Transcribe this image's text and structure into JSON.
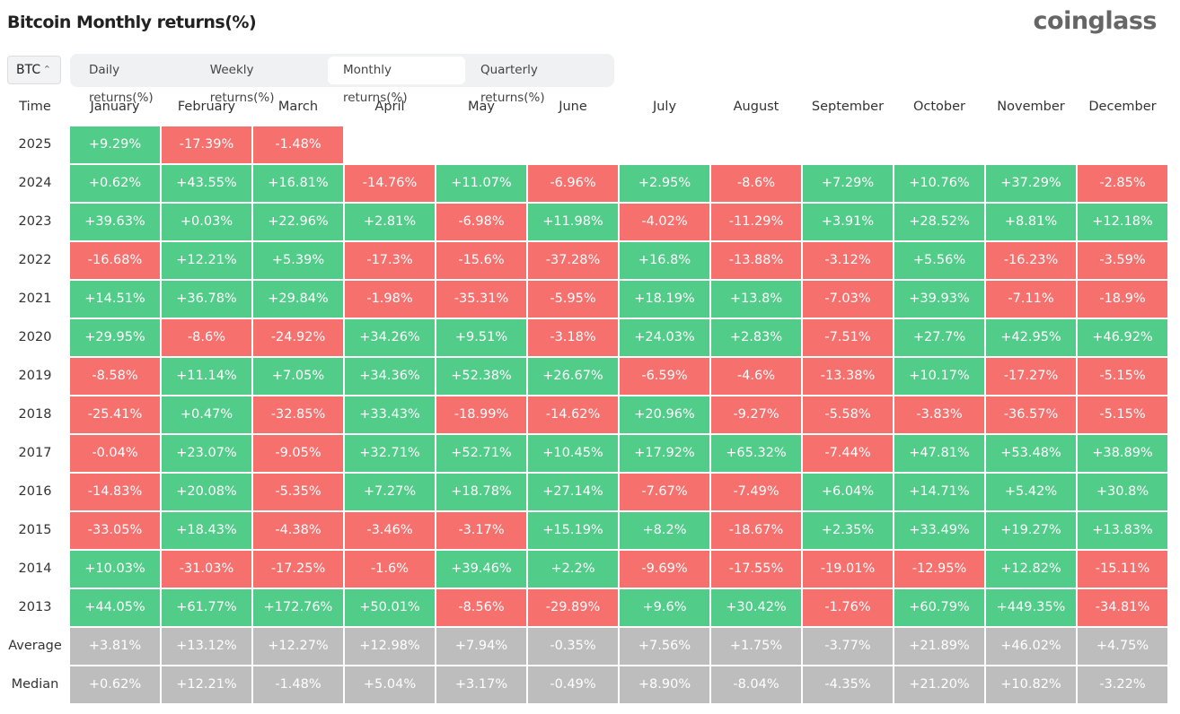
{
  "header": {
    "title": "Bitcoin Monthly returns(%)",
    "brand": "coinglass"
  },
  "selector": "BTC",
  "tabs": [
    "Daily returns(%)",
    "Weekly returns(%)",
    "Monthly returns(%)",
    "Quarterly returns(%)"
  ],
  "table": {
    "columns": [
      "Time",
      "January",
      "February",
      "March",
      "April",
      "May",
      "June",
      "July",
      "August",
      "September",
      "October",
      "November",
      "December"
    ],
    "rows": [
      [
        "2025",
        "+9.29%",
        "-17.39%",
        "-1.48%"
      ],
      [
        "2024",
        "+0.62%",
        "+43.55%",
        "+16.81%",
        "-14.76%",
        "+11.07%",
        "-6.96%",
        "+2.95%",
        "-8.6%",
        "+7.29%",
        "+10.76%",
        "+37.29%",
        "-2.85%"
      ],
      [
        "2023",
        "+39.63%",
        "+0.03%",
        "+22.96%",
        "+2.81%",
        "-6.98%",
        "+11.98%",
        "-4.02%",
        "-11.29%",
        "+3.91%",
        "+28.52%",
        "+8.81%",
        "+12.18%"
      ],
      [
        "2022",
        "-16.68%",
        "+12.21%",
        "+5.39%",
        "-17.3%",
        "-15.6%",
        "-37.28%",
        "+16.8%",
        "-13.88%",
        "-3.12%",
        "+5.56%",
        "-16.23%",
        "-3.59%"
      ],
      [
        "2021",
        "+14.51%",
        "+36.78%",
        "+29.84%",
        "-1.98%",
        "-35.31%",
        "-5.95%",
        "+18.19%",
        "+13.8%",
        "-7.03%",
        "+39.93%",
        "-7.11%",
        "-18.9%"
      ],
      [
        "2020",
        "+29.95%",
        "-8.6%",
        "-24.92%",
        "+34.26%",
        "+9.51%",
        "-3.18%",
        "+24.03%",
        "+2.83%",
        "-7.51%",
        "+27.7%",
        "+42.95%",
        "+46.92%"
      ],
      [
        "2019",
        "-8.58%",
        "+11.14%",
        "+7.05%",
        "+34.36%",
        "+52.38%",
        "+26.67%",
        "-6.59%",
        "-4.6%",
        "-13.38%",
        "+10.17%",
        "-17.27%",
        "-5.15%"
      ],
      [
        "2018",
        "-25.41%",
        "+0.47%",
        "-32.85%",
        "+33.43%",
        "-18.99%",
        "-14.62%",
        "+20.96%",
        "-9.27%",
        "-5.58%",
        "-3.83%",
        "-36.57%",
        "-5.15%"
      ],
      [
        "2017",
        "-0.04%",
        "+23.07%",
        "-9.05%",
        "+32.71%",
        "+52.71%",
        "+10.45%",
        "+17.92%",
        "+65.32%",
        "-7.44%",
        "+47.81%",
        "+53.48%",
        "+38.89%"
      ],
      [
        "2016",
        "-14.83%",
        "+20.08%",
        "-5.35%",
        "+7.27%",
        "+18.78%",
        "+27.14%",
        "-7.67%",
        "-7.49%",
        "+6.04%",
        "+14.71%",
        "+5.42%",
        "+30.8%"
      ],
      [
        "2015",
        "-33.05%",
        "+18.43%",
        "-4.38%",
        "-3.46%",
        "-3.17%",
        "+15.19%",
        "+8.2%",
        "-18.67%",
        "+2.35%",
        "+33.49%",
        "+19.27%",
        "+13.83%"
      ],
      [
        "2014",
        "+10.03%",
        "-31.03%",
        "-17.25%",
        "-1.6%",
        "+39.46%",
        "+2.2%",
        "-9.69%",
        "-17.55%",
        "-19.01%",
        "-12.95%",
        "+12.82%",
        "-15.11%"
      ],
      [
        "2013",
        "+44.05%",
        "+61.77%",
        "+172.76%",
        "+50.01%",
        "-8.56%",
        "-29.89%",
        "+9.6%",
        "+30.42%",
        "-1.76%",
        "+60.79%",
        "+449.35%",
        "-34.81%"
      ]
    ],
    "summary_rows": [
      [
        "Average",
        "+3.81%",
        "+13.12%",
        "+12.27%",
        "+12.98%",
        "+7.94%",
        "-0.35%",
        "+7.56%",
        "+1.75%",
        "-3.77%",
        "+21.89%",
        "+46.02%",
        "+4.75%"
      ],
      [
        "Median",
        "+0.62%",
        "+12.21%",
        "-1.48%",
        "+5.04%",
        "+3.17%",
        "-0.49%",
        "+8.90%",
        "-8.04%",
        "-4.35%",
        "+21.20%",
        "+10.82%",
        "-3.22%"
      ]
    ]
  }
}
